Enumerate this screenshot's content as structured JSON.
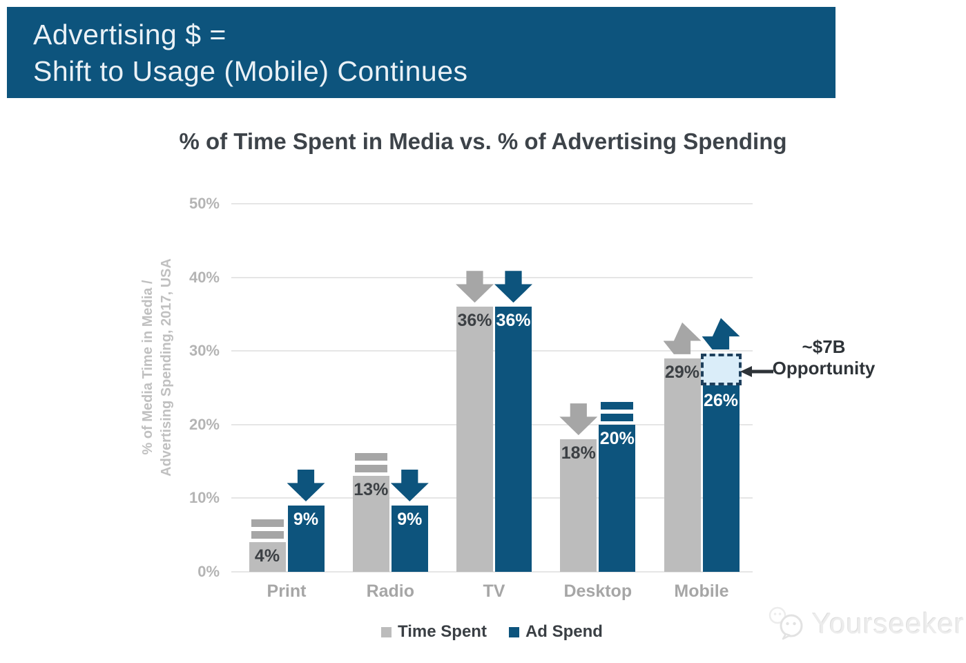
{
  "header": {
    "line1": "Advertising $ =",
    "line2": "Shift to Usage (Mobile) Continues"
  },
  "chart_data": {
    "type": "bar",
    "title": "% of Time Spent in Media vs. % of Advertising Spending",
    "ylabel_line1": "% of Media Time in Media /",
    "ylabel_line2": "Advertising Spending, 2017, USA",
    "categories": [
      "Print",
      "Radio",
      "TV",
      "Desktop",
      "Mobile"
    ],
    "series": [
      {
        "name": "Time Spent",
        "color": "#bcbcbc",
        "trend_color": "#a6a6a6",
        "label_color": "#3c4044",
        "values": [
          4,
          13,
          36,
          18,
          29
        ],
        "labels": [
          "4%",
          "13%",
          "36%",
          "18%",
          "29%"
        ],
        "trends": [
          "equal",
          "equal",
          "down",
          "down",
          "up"
        ]
      },
      {
        "name": "Ad Spend",
        "color": "#0d547d",
        "trend_color": "#0d547d",
        "label_color": "#ffffff",
        "values": [
          9,
          9,
          36,
          20,
          26
        ],
        "labels": [
          "9%",
          "9%",
          "36%",
          "20%",
          "26%"
        ],
        "trends": [
          "down",
          "down",
          "down",
          "equal",
          "up"
        ]
      }
    ],
    "y_ticks": [
      "0%",
      "10%",
      "20%",
      "30%",
      "40%",
      "50%"
    ],
    "ylim": [
      0,
      50
    ],
    "grid": true,
    "legend_position": "bottom",
    "annotation": {
      "line1": "~$7B",
      "line2": "Opportunity",
      "target_series": 1,
      "target_category": 4,
      "box_top_value": 29.6,
      "box_fill": "#daedf9",
      "box_border": "#1e3f5c"
    }
  },
  "watermark": {
    "text": "Yourseeker"
  }
}
